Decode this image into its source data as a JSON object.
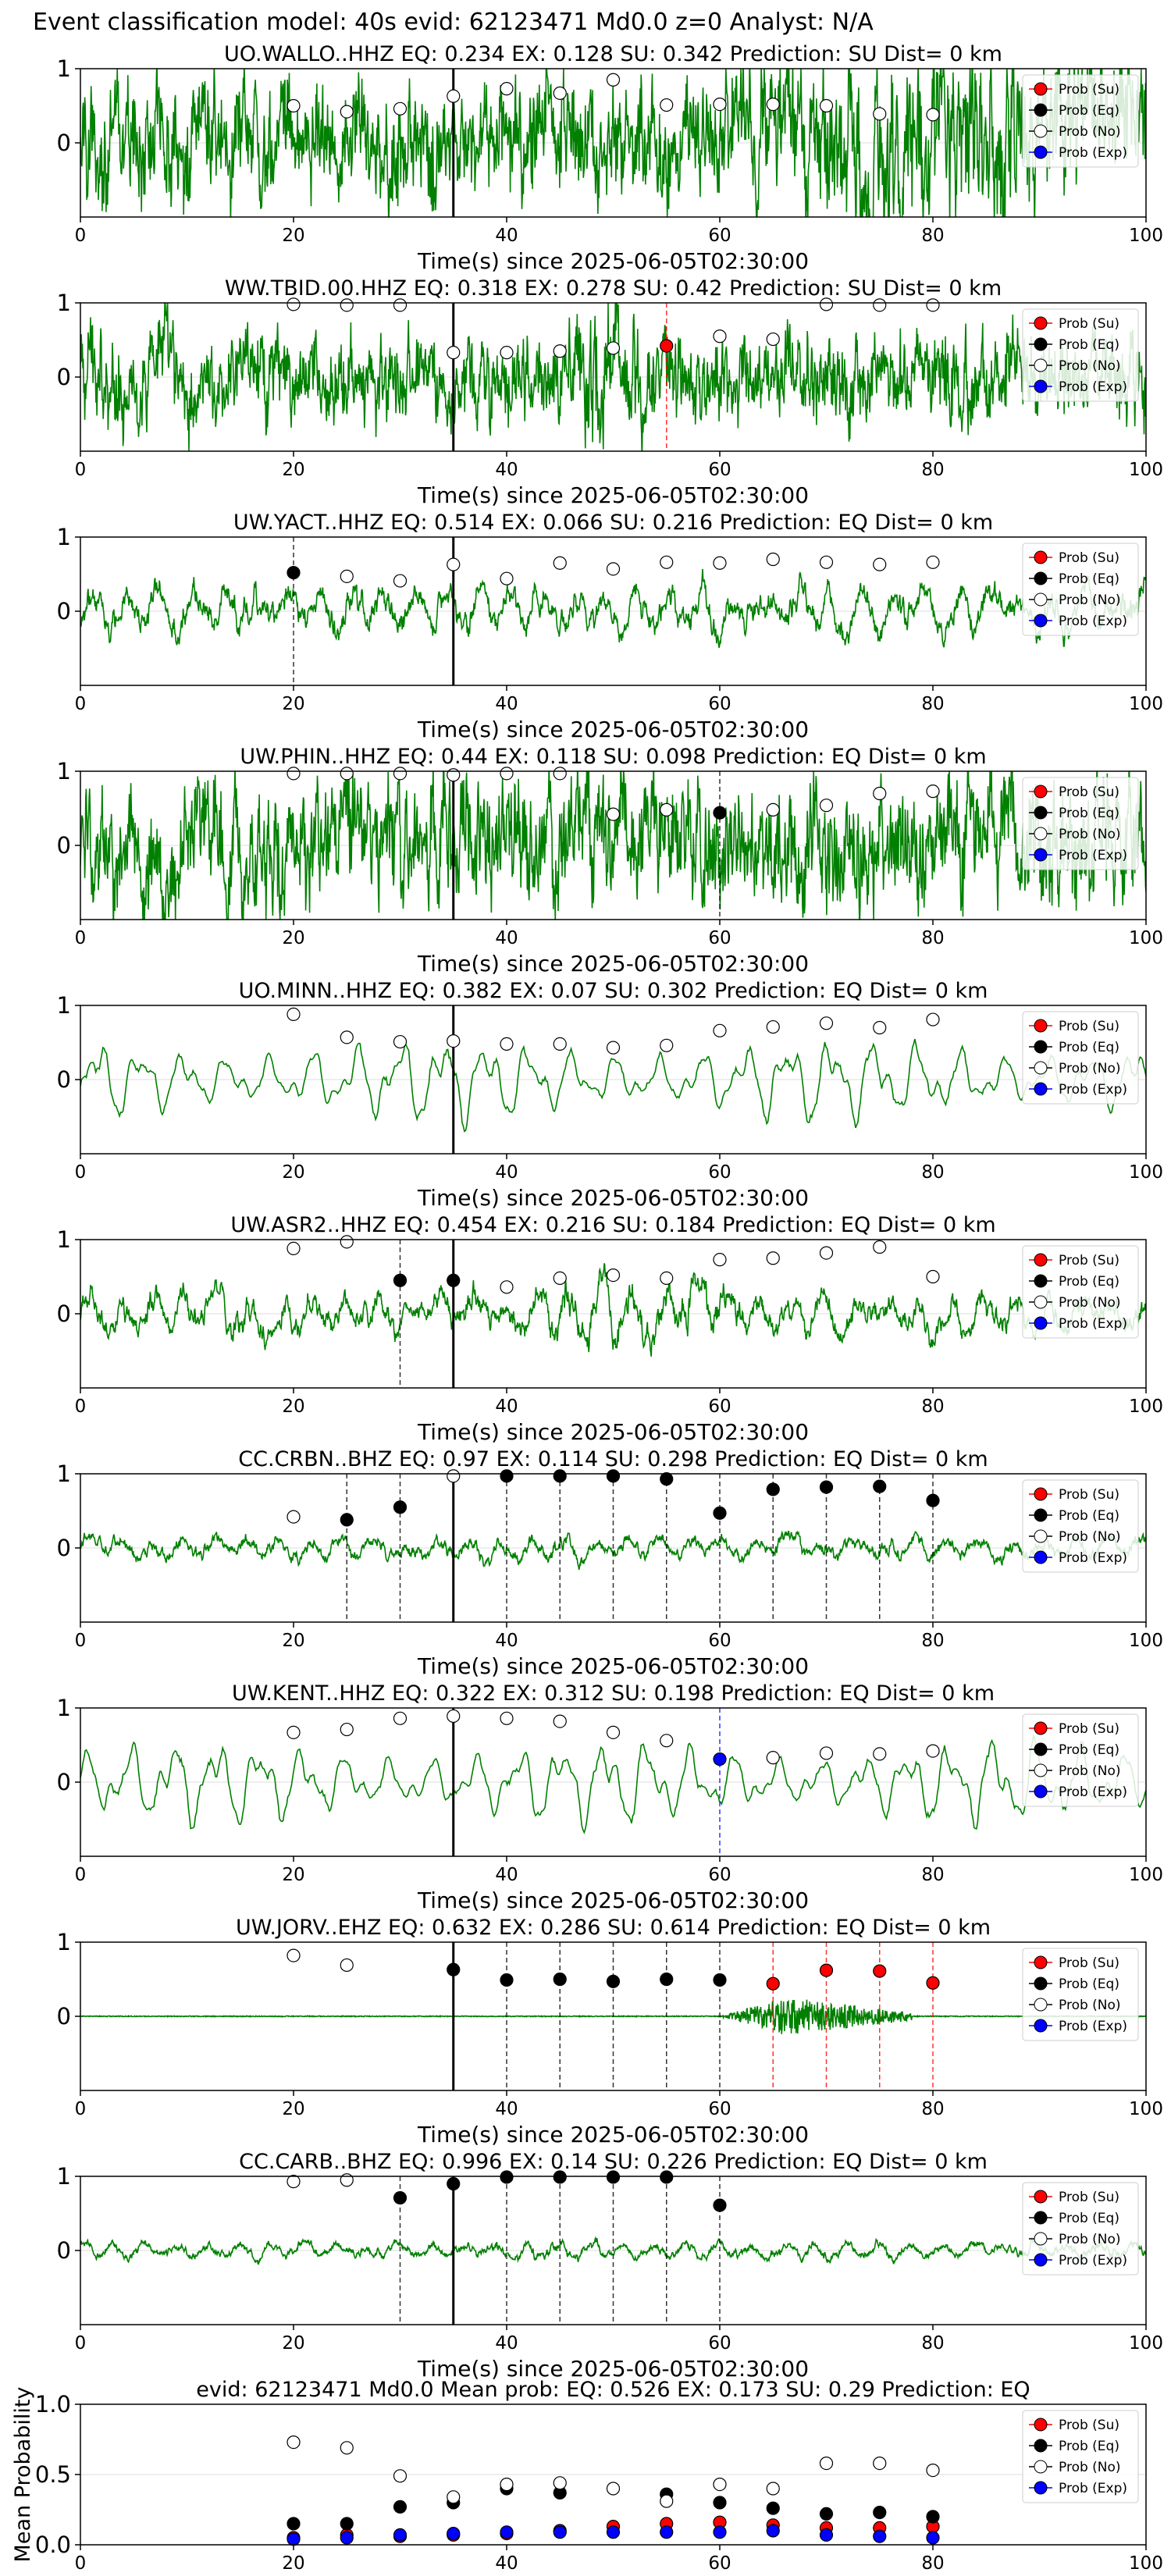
{
  "figure": {
    "suptitle": "Event classification model: 40s evid: 62123471 Md0.0 z=0 Analyst: N/A"
  },
  "legend": {
    "entries": [
      {
        "label": "Prob (Su)",
        "color": "#ff0000",
        "fill": "#ff0000"
      },
      {
        "label": "Prob (Eq)",
        "color": "#000000",
        "fill": "#000000"
      },
      {
        "label": "Prob (No)",
        "color": "#000000",
        "fill": "#ffffff"
      },
      {
        "label": "Prob (Exp)",
        "color": "#0000ff",
        "fill": "#0000ff"
      }
    ],
    "placement": "top-right"
  },
  "colors": {
    "trace": "#008000",
    "su": "#ff0000",
    "eq": "#000000",
    "no": "#ffffff",
    "exp": "#0000ff",
    "origin_line": "#000000"
  },
  "chart_data": [
    {
      "type": "line",
      "station": "UO.WALLO..HHZ",
      "title": "UO.WALLO..HHZ   EQ: 0.234  EX: 0.128  SU: 0.342   Prediction: SU    Dist= 0 km",
      "xlabel": "Time(s) since 2025-06-05T02:30:00",
      "xlim": [
        0,
        100
      ],
      "ylim": [
        -1,
        1
      ],
      "xticks": [
        0,
        20,
        40,
        60,
        80,
        100
      ],
      "yticks": [
        0,
        1
      ],
      "origin_time": 35,
      "waveform": {
        "style": "broadband",
        "amplitude": 0.75,
        "burst": [
          60,
          100
        ]
      },
      "probabilities": [
        {
          "t": 20,
          "class": "No",
          "p": 0.5
        },
        {
          "t": 25,
          "class": "No",
          "p": 0.42
        },
        {
          "t": 30,
          "class": "No",
          "p": 0.46
        },
        {
          "t": 35,
          "class": "No",
          "p": 0.63
        },
        {
          "t": 40,
          "class": "No",
          "p": 0.73
        },
        {
          "t": 45,
          "class": "No",
          "p": 0.67
        },
        {
          "t": 50,
          "class": "No",
          "p": 0.85
        },
        {
          "t": 55,
          "class": "No",
          "p": 0.51
        },
        {
          "t": 60,
          "class": "No",
          "p": 0.52
        },
        {
          "t": 65,
          "class": "No",
          "p": 0.52
        },
        {
          "t": 70,
          "class": "No",
          "p": 0.5
        },
        {
          "t": 75,
          "class": "No",
          "p": 0.39
        },
        {
          "t": 80,
          "class": "No",
          "p": 0.38
        }
      ]
    },
    {
      "type": "line",
      "station": "WW.TBID.00.HHZ",
      "title": "WW.TBID.00.HHZ   EQ: 0.318  EX: 0.278  SU: 0.42   Prediction: SU    Dist= 0 km",
      "xlabel": "Time(s) since 2025-06-05T02:30:00",
      "xlim": [
        0,
        100
      ],
      "ylim": [
        -1,
        1
      ],
      "xticks": [
        0,
        20,
        40,
        60,
        80,
        100
      ],
      "yticks": [
        0,
        1
      ],
      "origin_time": 35,
      "waveform": {
        "style": "broadband",
        "amplitude": 0.55,
        "burst": [
          45,
          55
        ]
      },
      "probabilities": [
        {
          "t": 20,
          "class": "No",
          "p": 0.98
        },
        {
          "t": 25,
          "class": "No",
          "p": 0.97
        },
        {
          "t": 30,
          "class": "No",
          "p": 0.97
        },
        {
          "t": 35,
          "class": "No",
          "p": 0.33
        },
        {
          "t": 40,
          "class": "No",
          "p": 0.33
        },
        {
          "t": 45,
          "class": "No",
          "p": 0.35
        },
        {
          "t": 50,
          "class": "No",
          "p": 0.39
        },
        {
          "t": 55,
          "class": "Su",
          "p": 0.42
        },
        {
          "t": 60,
          "class": "No",
          "p": 0.55
        },
        {
          "t": 65,
          "class": "No",
          "p": 0.51
        },
        {
          "t": 70,
          "class": "No",
          "p": 0.98
        },
        {
          "t": 75,
          "class": "No",
          "p": 0.97
        },
        {
          "t": 80,
          "class": "No",
          "p": 0.97
        }
      ]
    },
    {
      "type": "line",
      "station": "UW.YACT..HHZ",
      "title": "UW.YACT..HHZ   EQ: 0.514  EX: 0.066  SU: 0.216   Prediction: EQ    Dist= 0 km",
      "xlabel": "Time(s) since 2025-06-05T02:30:00",
      "xlim": [
        0,
        100
      ],
      "ylim": [
        -1,
        1
      ],
      "xticks": [
        0,
        20,
        40,
        60,
        80,
        100
      ],
      "yticks": [
        0,
        1
      ],
      "origin_time": 35,
      "waveform": {
        "style": "medium",
        "amplitude": 0.6,
        "burst": null
      },
      "probabilities": [
        {
          "t": 20,
          "class": "Eq",
          "p": 0.52
        },
        {
          "t": 25,
          "class": "No",
          "p": 0.47
        },
        {
          "t": 30,
          "class": "No",
          "p": 0.41
        },
        {
          "t": 35,
          "class": "No",
          "p": 0.63
        },
        {
          "t": 40,
          "class": "No",
          "p": 0.44
        },
        {
          "t": 45,
          "class": "No",
          "p": 0.65
        },
        {
          "t": 50,
          "class": "No",
          "p": 0.57
        },
        {
          "t": 55,
          "class": "No",
          "p": 0.66
        },
        {
          "t": 60,
          "class": "No",
          "p": 0.65
        },
        {
          "t": 65,
          "class": "No",
          "p": 0.7
        },
        {
          "t": 70,
          "class": "No",
          "p": 0.66
        },
        {
          "t": 75,
          "class": "No",
          "p": 0.63
        },
        {
          "t": 80,
          "class": "No",
          "p": 0.66
        }
      ]
    },
    {
      "type": "line",
      "station": "UW.PHIN..HHZ",
      "title": "UW.PHIN..HHZ   EQ: 0.44  EX: 0.118  SU: 0.098   Prediction: EQ    Dist= 0 km",
      "xlabel": "Time(s) since 2025-06-05T02:30:00",
      "xlim": [
        0,
        100
      ],
      "ylim": [
        -1,
        1
      ],
      "xticks": [
        0,
        20,
        40,
        60,
        80,
        100
      ],
      "yticks": [
        0,
        1
      ],
      "origin_time": 35,
      "waveform": {
        "style": "broadband",
        "amplitude": 0.8,
        "burst": null
      },
      "probabilities": [
        {
          "t": 20,
          "class": "No",
          "p": 0.97
        },
        {
          "t": 25,
          "class": "No",
          "p": 0.97
        },
        {
          "t": 30,
          "class": "No",
          "p": 0.97
        },
        {
          "t": 35,
          "class": "No",
          "p": 0.95
        },
        {
          "t": 40,
          "class": "No",
          "p": 0.97
        },
        {
          "t": 45,
          "class": "No",
          "p": 0.97
        },
        {
          "t": 50,
          "class": "No",
          "p": 0.42
        },
        {
          "t": 55,
          "class": "No",
          "p": 0.48
        },
        {
          "t": 60,
          "class": "Eq",
          "p": 0.44
        },
        {
          "t": 65,
          "class": "No",
          "p": 0.48
        },
        {
          "t": 70,
          "class": "No",
          "p": 0.54
        },
        {
          "t": 75,
          "class": "No",
          "p": 0.7
        },
        {
          "t": 80,
          "class": "No",
          "p": 0.73
        }
      ]
    },
    {
      "type": "line",
      "station": "UO.MINN..HHZ",
      "title": "UO.MINN..HHZ   EQ: 0.382  EX: 0.07  SU: 0.302   Prediction: EQ    Dist= 0 km",
      "xlabel": "Time(s) since 2025-06-05T02:30:00",
      "xlim": [
        0,
        100
      ],
      "ylim": [
        -1,
        1
      ],
      "xticks": [
        0,
        20,
        40,
        60,
        80,
        100
      ],
      "yticks": [
        0,
        1
      ],
      "origin_time": 35,
      "waveform": {
        "style": "smooth",
        "amplitude": 0.7,
        "burst": null
      },
      "probabilities": [
        {
          "t": 20,
          "class": "No",
          "p": 0.88
        },
        {
          "t": 25,
          "class": "No",
          "p": 0.57
        },
        {
          "t": 30,
          "class": "No",
          "p": 0.51
        },
        {
          "t": 35,
          "class": "No",
          "p": 0.52
        },
        {
          "t": 40,
          "class": "No",
          "p": 0.48
        },
        {
          "t": 45,
          "class": "No",
          "p": 0.48
        },
        {
          "t": 50,
          "class": "No",
          "p": 0.43
        },
        {
          "t": 55,
          "class": "No",
          "p": 0.46
        },
        {
          "t": 60,
          "class": "No",
          "p": 0.66
        },
        {
          "t": 65,
          "class": "No",
          "p": 0.71
        },
        {
          "t": 70,
          "class": "No",
          "p": 0.76
        },
        {
          "t": 75,
          "class": "No",
          "p": 0.7
        },
        {
          "t": 80,
          "class": "No",
          "p": 0.81
        }
      ]
    },
    {
      "type": "line",
      "station": "UW.ASR2..HHZ",
      "title": "UW.ASR2..HHZ   EQ: 0.454  EX: 0.216  SU: 0.184   Prediction: EQ    Dist= 0 km",
      "xlabel": "Time(s) since 2025-06-05T02:30:00",
      "xlim": [
        0,
        100
      ],
      "ylim": [
        -1,
        1
      ],
      "xticks": [
        0,
        20,
        40,
        60,
        80,
        100
      ],
      "yticks": [
        0,
        1
      ],
      "origin_time": 35,
      "waveform": {
        "style": "medium",
        "amplitude": 0.5,
        "burst": [
          40,
          65
        ]
      },
      "probabilities": [
        {
          "t": 20,
          "class": "No",
          "p": 0.88
        },
        {
          "t": 25,
          "class": "No",
          "p": 0.97
        },
        {
          "t": 30,
          "class": "Eq",
          "p": 0.45
        },
        {
          "t": 35,
          "class": "Eq",
          "p": 0.45
        },
        {
          "t": 40,
          "class": "No",
          "p": 0.36
        },
        {
          "t": 45,
          "class": "No",
          "p": 0.48
        },
        {
          "t": 50,
          "class": "No",
          "p": 0.52
        },
        {
          "t": 55,
          "class": "No",
          "p": 0.48
        },
        {
          "t": 60,
          "class": "No",
          "p": 0.73
        },
        {
          "t": 65,
          "class": "No",
          "p": 0.75
        },
        {
          "t": 70,
          "class": "No",
          "p": 0.82
        },
        {
          "t": 75,
          "class": "No",
          "p": 0.9
        },
        {
          "t": 80,
          "class": "No",
          "p": 0.5
        }
      ]
    },
    {
      "type": "line",
      "station": "CC.CRBN..BHZ",
      "title": "CC.CRBN..BHZ   EQ: 0.97  EX: 0.114  SU: 0.298   Prediction: EQ    Dist= 0 km",
      "xlabel": "Time(s) since 2025-06-05T02:30:00",
      "xlim": [
        0,
        100
      ],
      "ylim": [
        -1,
        1
      ],
      "xticks": [
        0,
        20,
        40,
        60,
        80,
        100
      ],
      "yticks": [
        0,
        1
      ],
      "origin_time": 35,
      "waveform": {
        "style": "medium",
        "amplitude": 0.28,
        "burst": null
      },
      "probabilities": [
        {
          "t": 20,
          "class": "No",
          "p": 0.42
        },
        {
          "t": 25,
          "class": "Eq",
          "p": 0.38
        },
        {
          "t": 30,
          "class": "Eq",
          "p": 0.55
        },
        {
          "t": 35,
          "class": "No",
          "p": 0.97
        },
        {
          "t": 40,
          "class": "Eq",
          "p": 0.97
        },
        {
          "t": 45,
          "class": "Eq",
          "p": 0.97
        },
        {
          "t": 50,
          "class": "Eq",
          "p": 0.97
        },
        {
          "t": 55,
          "class": "Eq",
          "p": 0.93
        },
        {
          "t": 60,
          "class": "Eq",
          "p": 0.47
        },
        {
          "t": 65,
          "class": "Eq",
          "p": 0.79
        },
        {
          "t": 70,
          "class": "Eq",
          "p": 0.82
        },
        {
          "t": 75,
          "class": "Eq",
          "p": 0.83
        },
        {
          "t": 80,
          "class": "Eq",
          "p": 0.64
        }
      ]
    },
    {
      "type": "line",
      "station": "UW.KENT..HHZ",
      "title": "UW.KENT..HHZ   EQ: 0.322  EX: 0.312  SU: 0.198   Prediction: EQ    Dist= 0 km",
      "xlabel": "Time(s) since 2025-06-05T02:30:00",
      "xlim": [
        0,
        100
      ],
      "ylim": [
        -1,
        1
      ],
      "xticks": [
        0,
        20,
        40,
        60,
        80,
        100
      ],
      "yticks": [
        0,
        1
      ],
      "origin_time": 35,
      "waveform": {
        "style": "smooth",
        "amplitude": 0.7,
        "burst": null
      },
      "probabilities": [
        {
          "t": 20,
          "class": "No",
          "p": 0.67
        },
        {
          "t": 25,
          "class": "No",
          "p": 0.71
        },
        {
          "t": 30,
          "class": "No",
          "p": 0.86
        },
        {
          "t": 35,
          "class": "No",
          "p": 0.89
        },
        {
          "t": 40,
          "class": "No",
          "p": 0.86
        },
        {
          "t": 45,
          "class": "No",
          "p": 0.82
        },
        {
          "t": 50,
          "class": "No",
          "p": 0.67
        },
        {
          "t": 55,
          "class": "No",
          "p": 0.56
        },
        {
          "t": 60,
          "class": "Exp",
          "p": 0.31
        },
        {
          "t": 65,
          "class": "No",
          "p": 0.33
        },
        {
          "t": 70,
          "class": "No",
          "p": 0.39
        },
        {
          "t": 75,
          "class": "No",
          "p": 0.38
        },
        {
          "t": 80,
          "class": "No",
          "p": 0.42
        }
      ]
    },
    {
      "type": "line",
      "station": "UW.JORV..EHZ",
      "title": "UW.JORV..EHZ   EQ: 0.632  EX: 0.286  SU: 0.614   Prediction: EQ    Dist= 0 km",
      "xlabel": "Time(s) since 2025-06-05T02:30:00",
      "xlim": [
        0,
        100
      ],
      "ylim": [
        -1,
        1
      ],
      "xticks": [
        0,
        20,
        40,
        60,
        80,
        100
      ],
      "yticks": [
        0,
        1
      ],
      "origin_time": 35,
      "waveform": {
        "style": "quiet",
        "amplitude": 0.02,
        "burst": [
          60,
          78
        ]
      },
      "probabilities": [
        {
          "t": 20,
          "class": "No",
          "p": 0.82
        },
        {
          "t": 25,
          "class": "No",
          "p": 0.69
        },
        {
          "t": 35,
          "class": "Eq",
          "p": 0.63
        },
        {
          "t": 40,
          "class": "Eq",
          "p": 0.49
        },
        {
          "t": 45,
          "class": "Eq",
          "p": 0.5
        },
        {
          "t": 50,
          "class": "Eq",
          "p": 0.47
        },
        {
          "t": 55,
          "class": "Eq",
          "p": 0.5
        },
        {
          "t": 60,
          "class": "Eq",
          "p": 0.49
        },
        {
          "t": 65,
          "class": "Su",
          "p": 0.44
        },
        {
          "t": 70,
          "class": "Su",
          "p": 0.62
        },
        {
          "t": 75,
          "class": "Su",
          "p": 0.61
        },
        {
          "t": 80,
          "class": "Su",
          "p": 0.45
        }
      ]
    },
    {
      "type": "line",
      "station": "CC.CARB..BHZ",
      "title": "CC.CARB..BHZ   EQ: 0.996  EX: 0.14  SU: 0.226   Prediction: EQ    Dist= 0 km",
      "xlabel": "Time(s) since 2025-06-05T02:30:00",
      "xlim": [
        0,
        100
      ],
      "ylim": [
        -1,
        1
      ],
      "xticks": [
        0,
        20,
        40,
        60,
        80,
        100
      ],
      "yticks": [
        0,
        1
      ],
      "origin_time": 35,
      "waveform": {
        "style": "medium",
        "amplitude": 0.18,
        "burst": [
          40,
          50
        ]
      },
      "probabilities": [
        {
          "t": 20,
          "class": "No",
          "p": 0.93
        },
        {
          "t": 25,
          "class": "No",
          "p": 0.95
        },
        {
          "t": 30,
          "class": "Eq",
          "p": 0.71
        },
        {
          "t": 35,
          "class": "Eq",
          "p": 0.9
        },
        {
          "t": 40,
          "class": "Eq",
          "p": 0.99
        },
        {
          "t": 45,
          "class": "Eq",
          "p": 0.99
        },
        {
          "t": 50,
          "class": "Eq",
          "p": 0.99
        },
        {
          "t": 55,
          "class": "Eq",
          "p": 0.99
        },
        {
          "t": 60,
          "class": "Eq",
          "p": 0.61
        }
      ]
    },
    {
      "type": "scatter",
      "station": "",
      "title": "evid: 62123471  Md0.0   Mean prob:   EQ: 0.526  EX: 0.173  SU: 0.29   Prediction: EQ",
      "xlabel": "",
      "ylabel": "Mean Probability",
      "xlim": [
        0,
        100
      ],
      "ylim": [
        0,
        1
      ],
      "xticks": [
        0,
        20,
        40,
        60,
        80,
        100
      ],
      "yticks": [
        0.0,
        0.5,
        1.0
      ],
      "ytick_labels": [
        "0.0",
        "0.5",
        "1.0"
      ],
      "x": [
        20,
        25,
        30,
        35,
        40,
        45,
        50,
        55,
        60,
        65,
        70,
        75,
        80
      ],
      "series": [
        {
          "name": "Prob (Su)",
          "class": "Su",
          "values": [
            0.05,
            0.07,
            0.06,
            0.07,
            0.08,
            0.1,
            0.13,
            0.15,
            0.16,
            0.14,
            0.12,
            0.12,
            0.13
          ]
        },
        {
          "name": "Prob (Eq)",
          "class": "Eq",
          "values": [
            0.15,
            0.15,
            0.27,
            0.3,
            0.4,
            0.37,
            null,
            0.36,
            0.3,
            0.26,
            0.22,
            0.23,
            0.2
          ]
        },
        {
          "name": "Prob (No)",
          "class": "No",
          "values": [
            0.73,
            0.69,
            0.49,
            0.34,
            0.43,
            0.44,
            0.4,
            0.31,
            0.43,
            0.4,
            0.58,
            0.58,
            0.53
          ]
        },
        {
          "name": "Prob (Exp)",
          "class": "Exp",
          "values": [
            0.04,
            0.05,
            0.07,
            0.08,
            0.09,
            0.09,
            0.09,
            0.09,
            0.09,
            0.1,
            0.07,
            0.06,
            0.05
          ]
        }
      ]
    }
  ]
}
